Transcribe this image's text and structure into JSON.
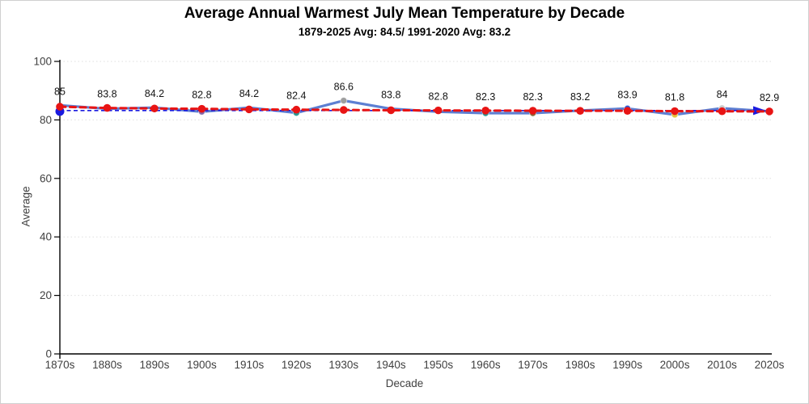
{
  "header": {
    "title": "Average Annual Warmest July Mean Temperature by Decade",
    "subtitle": "1879-2025 Avg: 84.5/ 1991-2020 Avg: 83.2"
  },
  "chart_data": {
    "type": "line",
    "title": "Average Annual Warmest July Mean Temperature by Decade",
    "subtitle": "1879-2025 Avg: 84.5/ 1991-2020 Avg: 83.2",
    "xlabel": "Decade",
    "ylabel": "Average",
    "ylim": [
      0,
      100
    ],
    "yticks": [
      0,
      20,
      40,
      60,
      80,
      100
    ],
    "grid": true,
    "legend": "none",
    "categories": [
      "1870s",
      "1880s",
      "1890s",
      "1900s",
      "1910s",
      "1920s",
      "1930s",
      "1940s",
      "1950s",
      "1960s",
      "1970s",
      "1980s",
      "1990s",
      "2000s",
      "2010s",
      "2020s"
    ],
    "series": [
      {
        "name": "decade-average",
        "color": "#4f74ce",
        "style": "solid",
        "values": [
          85,
          83.8,
          84.2,
          82.8,
          84.2,
          82.4,
          86.6,
          83.8,
          82.8,
          82.3,
          82.3,
          83.2,
          83.9,
          81.8,
          84,
          82.9
        ],
        "labels": [
          "85",
          "83.8",
          "84.2",
          "82.8",
          "84.2",
          "82.4",
          "86.6",
          "83.8",
          "82.8",
          "82.3",
          "82.3",
          "83.2",
          "83.9",
          "81.8",
          "84",
          "82.9"
        ],
        "marker_colors": [
          null,
          null,
          null,
          "#8566a8",
          null,
          "#2a9a94",
          "#9e9e9e",
          null,
          null,
          "#2a9a94",
          "#8a6d3b",
          null,
          "#2e5bd7",
          "#e3c33f",
          "#c9c9c9",
          null
        ]
      },
      {
        "name": "trend-dashed-red",
        "color": "#e81414",
        "style": "dashed-with-markers",
        "values": [
          84.5,
          84.1,
          83.9,
          83.8,
          83.6,
          83.5,
          83.4,
          83.3,
          83.25,
          83.2,
          83.15,
          83.1,
          83.1,
          83.0,
          82.95,
          82.9
        ]
      },
      {
        "name": "reference-1991-2020-avg",
        "color": "#1a1adf",
        "style": "thin-dashed-arrow",
        "value": 83.2
      }
    ]
  }
}
